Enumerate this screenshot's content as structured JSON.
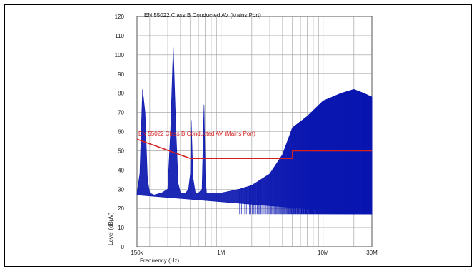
{
  "chart_data": {
    "type": "line",
    "title": "EN 55022 Class B Conducted AV (Mains Port)",
    "xlabel": "Frequency (Hz)",
    "ylabel": "Level (dBµV)",
    "x_scale": "log",
    "xlim": [
      150000,
      30000000
    ],
    "ylim": [
      0,
      120
    ],
    "y_ticks": [
      0,
      10,
      20,
      30,
      40,
      50,
      60,
      70,
      80,
      90,
      100,
      110,
      120
    ],
    "x_tick_labels": [
      {
        "value": 150000,
        "label": "150k"
      },
      {
        "value": 1000000,
        "label": "1M"
      },
      {
        "value": 10000000,
        "label": "10M"
      },
      {
        "value": 30000000,
        "label": "30M"
      }
    ],
    "grid": true,
    "series": [
      {
        "name": "EN 55022 Class B Conducted AV (Mains Port)",
        "color": "#d42020",
        "x": [
          150000,
          500000,
          500000,
          5000000,
          5000000,
          30000000
        ],
        "y": [
          56,
          46,
          46,
          46,
          50,
          50
        ]
      },
      {
        "color": "#0b17b0",
        "x": [
          150000,
          160000,
          170000,
          180000,
          190000,
          200000,
          220000,
          260000,
          300000,
          320000,
          340000,
          360000,
          380000,
          400000,
          450000,
          480000,
          500000,
          510000,
          530000,
          560000,
          600000,
          650000,
          680000,
          700000,
          720000,
          750000,
          800000,
          900000,
          1000000,
          1500000,
          2000000,
          3000000,
          4000000,
          5000000,
          7000000,
          10000000,
          15000000,
          20000000,
          25000000,
          30000000
        ],
        "y": [
          28,
          38,
          82,
          70,
          35,
          28,
          27,
          28,
          30,
          60,
          104,
          62,
          33,
          28,
          28,
          30,
          38,
          66,
          36,
          28,
          28,
          30,
          74,
          36,
          28,
          28,
          28,
          28,
          28,
          30,
          32,
          38,
          48,
          62,
          68,
          76,
          80,
          82,
          80,
          78
        ]
      }
    ]
  }
}
